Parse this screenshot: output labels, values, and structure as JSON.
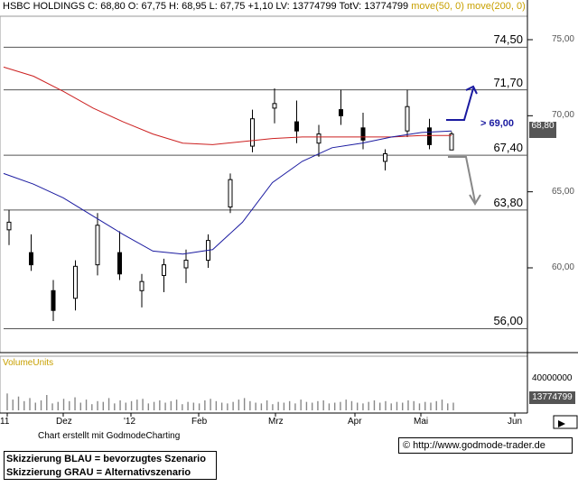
{
  "header": {
    "name": "HSBC HOLDINGS",
    "ohlc": "C: 68,80 O: 67,75 H: 68,95 L: 67,75 +1,10 LV: 13774799 TotV: 13774799",
    "ma_label": "move(50, 0) move(200, 0)"
  },
  "volume_title": "VolumeUnits",
  "credit": "Chart erstellt mit GodmodeCharting",
  "legend": {
    "blue": "Skizzierung BLAU = bevorzugtes Szenario",
    "grey": "Skizzierung GRAU = Alternativszenario"
  },
  "url_text": "© http://www.godmode-trader.de",
  "target_label": "> 69,00",
  "price_tag": "68,80",
  "volume_tag": "13774799",
  "colors": {
    "ma50": "#1a1aa0",
    "ma200": "#cc2020",
    "blue_arrow": "#1a1aa0",
    "grey_arrow": "#888888",
    "label_yellow": "#c8a000"
  },
  "chart_data": {
    "type": "candlestick",
    "title": "HSBC HOLDINGS",
    "y_axis_ticks": [
      75.0,
      70.0,
      65.0,
      60.0
    ],
    "y_axis_tick_labels": [
      "75,00",
      "70,00",
      "65,00",
      "60,00"
    ],
    "ylim": [
      55.5,
      77.5
    ],
    "horizontal_levels": [
      74.5,
      71.7,
      67.4,
      63.8,
      56.0
    ],
    "horizontal_level_labels": [
      "74,50",
      "71,70",
      "67,40",
      "63,80",
      "56,00"
    ],
    "x_tick_labels": [
      "11",
      "Dez",
      "'12",
      "Feb",
      "Mrz",
      "Apr",
      "Mai",
      "Jun"
    ],
    "last_close": 68.8,
    "volume_axis_tick": 40000000,
    "volume_axis_tick_label": "40000000",
    "last_volume": 13774799,
    "series": [
      {
        "name": "move(50, 0)",
        "values": [
          66.2,
          65.5,
          64.6,
          63.4,
          62.2,
          61.1,
          60.9,
          61.2,
          63.0,
          65.6,
          67.0,
          67.9,
          68.2,
          68.6,
          68.9,
          69.0
        ]
      },
      {
        "name": "move(200, 0)",
        "values": [
          73.2,
          72.6,
          71.6,
          70.5,
          69.6,
          68.8,
          68.2,
          68.1,
          68.3,
          68.5,
          68.6,
          68.6,
          68.6,
          68.6,
          68.7,
          68.7
        ]
      }
    ],
    "ohlc_sample": [
      {
        "o": 62.5,
        "h": 63.8,
        "l": 61.5,
        "c": 63.0
      },
      {
        "o": 61.0,
        "h": 62.2,
        "l": 59.8,
        "c": 60.2
      },
      {
        "o": 58.5,
        "h": 59.2,
        "l": 56.5,
        "c": 57.2
      },
      {
        "o": 58.0,
        "h": 60.5,
        "l": 57.2,
        "c": 60.1
      },
      {
        "o": 60.2,
        "h": 63.6,
        "l": 59.5,
        "c": 62.8
      },
      {
        "o": 61.0,
        "h": 62.4,
        "l": 59.2,
        "c": 59.6
      },
      {
        "o": 58.5,
        "h": 59.6,
        "l": 57.4,
        "c": 59.1
      },
      {
        "o": 59.5,
        "h": 60.6,
        "l": 58.4,
        "c": 60.2
      },
      {
        "o": 60.0,
        "h": 61.2,
        "l": 59.0,
        "c": 60.5
      },
      {
        "o": 60.5,
        "h": 62.2,
        "l": 60.0,
        "c": 61.8
      },
      {
        "o": 64.0,
        "h": 66.2,
        "l": 63.6,
        "c": 65.8
      },
      {
        "o": 68.0,
        "h": 70.4,
        "l": 67.6,
        "c": 69.8
      },
      {
        "o": 70.5,
        "h": 71.8,
        "l": 69.5,
        "c": 70.8
      },
      {
        "o": 69.6,
        "h": 71.0,
        "l": 68.2,
        "c": 69.0
      },
      {
        "o": 68.2,
        "h": 69.4,
        "l": 67.3,
        "c": 68.8
      },
      {
        "o": 70.4,
        "h": 71.7,
        "l": 69.4,
        "c": 70.0
      },
      {
        "o": 69.2,
        "h": 70.2,
        "l": 67.8,
        "c": 68.4
      },
      {
        "o": 67.0,
        "h": 67.8,
        "l": 66.4,
        "c": 67.5
      },
      {
        "o": 69.0,
        "h": 71.7,
        "l": 68.6,
        "c": 70.6
      },
      {
        "o": 69.2,
        "h": 69.8,
        "l": 67.8,
        "c": 68.1
      },
      {
        "o": 67.75,
        "h": 68.95,
        "l": 67.75,
        "c": 68.8
      }
    ],
    "volumes": [
      22,
      14,
      18,
      12,
      16,
      10,
      13,
      20,
      9,
      11,
      15,
      12,
      17,
      10,
      14,
      8,
      12,
      11,
      16,
      9,
      13,
      10,
      12,
      14,
      15,
      9,
      11,
      13,
      10,
      12,
      14,
      8,
      11,
      10,
      9,
      13,
      15,
      12,
      10,
      9,
      11,
      14,
      16,
      12,
      10,
      9,
      13,
      8,
      11,
      10,
      12,
      9,
      14,
      11,
      10,
      12,
      13,
      9,
      10,
      11,
      14,
      12,
      10,
      9,
      11,
      13,
      10,
      12,
      9,
      11,
      10,
      13,
      12,
      9,
      11,
      10,
      12,
      14,
      9,
      10
    ]
  }
}
